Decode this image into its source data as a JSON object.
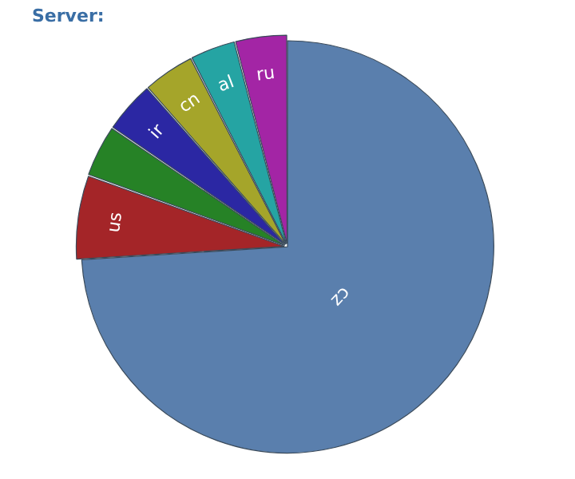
{
  "chart_data": {
    "type": "pie",
    "title": "Server:",
    "categories": [
      "cz",
      "us",
      null,
      "ir",
      "cn",
      "al",
      "ru"
    ],
    "values": [
      74,
      6.5,
      4,
      4,
      4,
      3.5,
      4
    ],
    "colors": [
      "#5a7fad",
      "#a42528",
      "#268226",
      "#2b27a3",
      "#a5a52a",
      "#25a4a3",
      "#a325a5"
    ],
    "legend": false
  }
}
